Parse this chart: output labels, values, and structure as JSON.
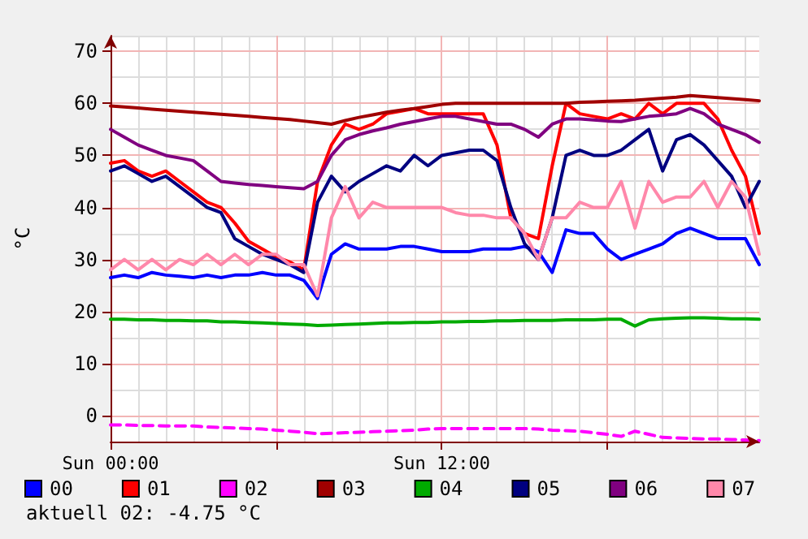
{
  "chart_data": {
    "type": "line",
    "ylabel": "°C",
    "categories": [
      "Sun 00:00",
      null,
      null,
      null,
      null,
      null,
      null,
      null,
      null,
      null,
      null,
      null,
      null,
      null,
      null,
      null,
      null,
      null,
      null,
      null,
      null,
      null,
      null,
      null,
      "Sun 12:00",
      null,
      null,
      null,
      null,
      null,
      null,
      null,
      null,
      null,
      null,
      null,
      null,
      null,
      null,
      null,
      null,
      null,
      null,
      null,
      null,
      null,
      null,
      null
    ],
    "ylim": [
      -5,
      73
    ],
    "yticks": [
      0,
      10,
      20,
      30,
      40,
      50,
      60,
      70
    ],
    "grid": true,
    "legend": "bottom",
    "marker": "none",
    "line_style": "solid",
    "annotations": [
      "aktuell 02: -4.75 °C"
    ],
    "series": [
      {
        "name": "00",
        "color": "#0000ff",
        "values": [
          26.5,
          27,
          26.5,
          27.5,
          27,
          26.8,
          26.5,
          27,
          26.5,
          27,
          27,
          27.5,
          27,
          27,
          26,
          22.5,
          31,
          33,
          32,
          32,
          32,
          32.5,
          32.5,
          32,
          31.5,
          31.5,
          31.5,
          32,
          32,
          32,
          32.5,
          31.5,
          27.5,
          35.7,
          35,
          35,
          32,
          30,
          31,
          32,
          33,
          35,
          36,
          35,
          34,
          34,
          34,
          29
        ]
      },
      {
        "name": "01",
        "color": "#ff0000",
        "values": [
          48.5,
          49,
          47,
          46,
          47,
          45,
          43,
          41,
          40,
          37,
          33.5,
          32,
          30.5,
          29.5,
          28,
          45,
          52,
          56,
          55,
          56,
          58,
          58.5,
          59,
          58,
          58,
          58,
          58,
          58,
          52,
          38,
          35,
          34,
          48,
          60,
          58,
          57.5,
          57,
          58,
          57,
          60,
          58,
          60,
          60,
          60,
          57,
          51,
          46,
          35
        ]
      },
      {
        "name": "02",
        "color": "#ff00ff",
        "line_style": "dashed",
        "values": [
          -1.8,
          -1.8,
          -1.9,
          -1.9,
          -2,
          -2,
          -2,
          -2.2,
          -2.3,
          -2.4,
          -2.5,
          -2.6,
          -2.8,
          -3,
          -3.2,
          -3.5,
          -3.4,
          -3.3,
          -3.2,
          -3.1,
          -3,
          -2.9,
          -2.8,
          -2.6,
          -2.5,
          -2.5,
          -2.5,
          -2.5,
          -2.5,
          -2.5,
          -2.5,
          -2.6,
          -2.8,
          -2.9,
          -3,
          -3.3,
          -3.6,
          -4,
          -3,
          -3.6,
          -4.2,
          -4.3,
          -4.4,
          -4.5,
          -4.5,
          -4.6,
          -4.7,
          -4.8
        ]
      },
      {
        "name": "03",
        "color": "#a00000",
        "values": [
          59.5,
          59.3,
          59.1,
          58.9,
          58.7,
          58.5,
          58.3,
          58.1,
          57.9,
          57.7,
          57.5,
          57.3,
          57.1,
          56.9,
          56.6,
          56.3,
          56,
          56.7,
          57.3,
          57.8,
          58.3,
          58.7,
          59,
          59.4,
          59.8,
          60,
          60,
          60,
          60,
          60,
          60,
          60,
          60,
          60,
          60.2,
          60.3,
          60.4,
          60.5,
          60.6,
          60.8,
          61,
          61.2,
          61.5,
          61.3,
          61.1,
          60.9,
          60.7,
          60.5
        ]
      },
      {
        "name": "04",
        "color": "#00aa00",
        "values": [
          18.5,
          18.5,
          18.4,
          18.4,
          18.3,
          18.3,
          18.2,
          18.2,
          18,
          18,
          17.9,
          17.8,
          17.7,
          17.6,
          17.5,
          17.3,
          17.4,
          17.5,
          17.6,
          17.7,
          17.8,
          17.8,
          17.9,
          17.9,
          18,
          18,
          18.1,
          18.1,
          18.2,
          18.2,
          18.3,
          18.3,
          18.3,
          18.4,
          18.4,
          18.4,
          18.5,
          18.5,
          17.2,
          18.4,
          18.6,
          18.7,
          18.8,
          18.8,
          18.7,
          18.6,
          18.6,
          18.5
        ]
      },
      {
        "name": "05",
        "color": "#000080",
        "values": [
          47,
          48,
          46.5,
          45,
          46,
          44,
          42,
          40,
          39,
          34,
          32.5,
          31,
          30,
          29,
          27.5,
          41,
          46,
          43,
          45,
          46.5,
          48,
          47,
          50,
          48,
          50,
          50.5,
          51,
          51,
          49,
          40,
          33,
          30,
          38,
          50,
          51,
          50,
          50,
          51,
          53,
          55,
          47,
          53,
          54,
          52,
          49,
          46,
          40,
          45
        ]
      },
      {
        "name": "06",
        "color": "#800080",
        "values": [
          55,
          53.5,
          52,
          51,
          50,
          49.5,
          49,
          47,
          45,
          44.7,
          44.4,
          44.2,
          44,
          43.8,
          43.6,
          45,
          50,
          53,
          54,
          54.7,
          55.3,
          56,
          56.5,
          57,
          57.5,
          57.5,
          57,
          56.5,
          56,
          56,
          55,
          53.5,
          56,
          57,
          57,
          56.8,
          56.6,
          56.5,
          57,
          57.5,
          57.7,
          58,
          59,
          58,
          56,
          55,
          54,
          52.5
        ]
      },
      {
        "name": "07",
        "color": "#ff88aa",
        "values": [
          28,
          30,
          28,
          30,
          28,
          30,
          29,
          31,
          29,
          31,
          29,
          31,
          31,
          29,
          29,
          23,
          38,
          44,
          38,
          41,
          40,
          40,
          40,
          40,
          40,
          39,
          38.5,
          38.5,
          38,
          38,
          35,
          30,
          38,
          38,
          41,
          40,
          40,
          45,
          36,
          45,
          41,
          42,
          42,
          45,
          40,
          45,
          42,
          31
        ]
      }
    ]
  }
}
